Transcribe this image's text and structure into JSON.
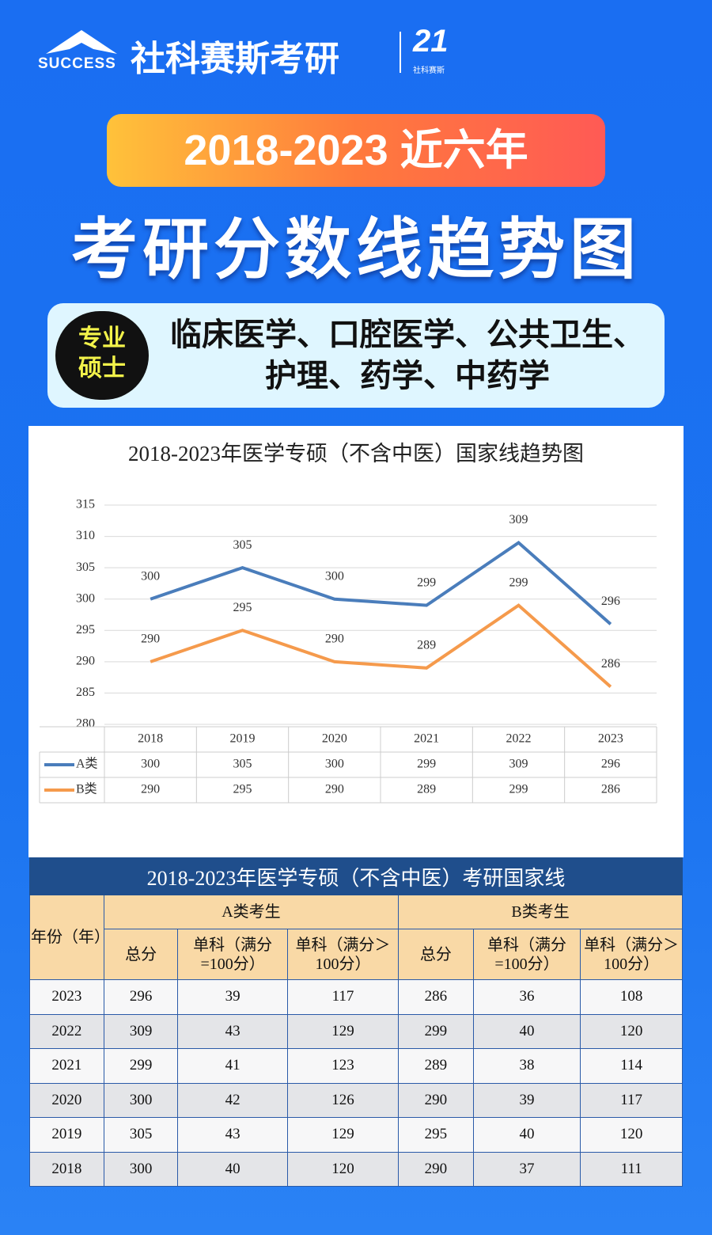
{
  "header": {
    "brand_en": "SUCCESS",
    "brand_cn": "社科赛斯考研",
    "logo_number": "21",
    "logo_caption": "社科赛斯"
  },
  "banner": "2018-2023 近六年",
  "title": "考研分数线趋势图",
  "tag": [
    "专业",
    "硕士"
  ],
  "subjects": [
    "临床医学、口腔医学、公共卫生、",
    "护理、药学、中药学"
  ],
  "chart_data": {
    "type": "line",
    "title": "2018-2023年医学专硕（不含中医）国家线趋势图",
    "categories": [
      "2018",
      "2019",
      "2020",
      "2021",
      "2022",
      "2023"
    ],
    "series": [
      {
        "name": "A类",
        "color": "#4a7dbb",
        "values": [
          300,
          305,
          300,
          299,
          309,
          296
        ]
      },
      {
        "name": "B类",
        "color": "#f59a4c",
        "values": [
          290,
          295,
          290,
          289,
          299,
          286
        ]
      }
    ],
    "ylim": [
      280,
      315
    ],
    "yticks": [
      280,
      285,
      290,
      295,
      300,
      305,
      310,
      315
    ],
    "grid": true
  },
  "table": {
    "title": "2018-2023年医学专硕（不含中医）考研国家线",
    "year_header": "年份（年）",
    "group_a": "A类考生",
    "group_b": "B类考生",
    "sub_headers": [
      "总分",
      "单科（满分=100分）",
      "单科（满分＞100分）"
    ],
    "rows": [
      [
        2023,
        296,
        39,
        117,
        286,
        36,
        108
      ],
      [
        2022,
        309,
        43,
        129,
        299,
        40,
        120
      ],
      [
        2021,
        299,
        41,
        123,
        289,
        38,
        114
      ],
      [
        2020,
        300,
        42,
        126,
        290,
        39,
        117
      ],
      [
        2019,
        305,
        43,
        129,
        295,
        40,
        120
      ],
      [
        2018,
        300,
        40,
        120,
        290,
        37,
        111
      ]
    ]
  }
}
